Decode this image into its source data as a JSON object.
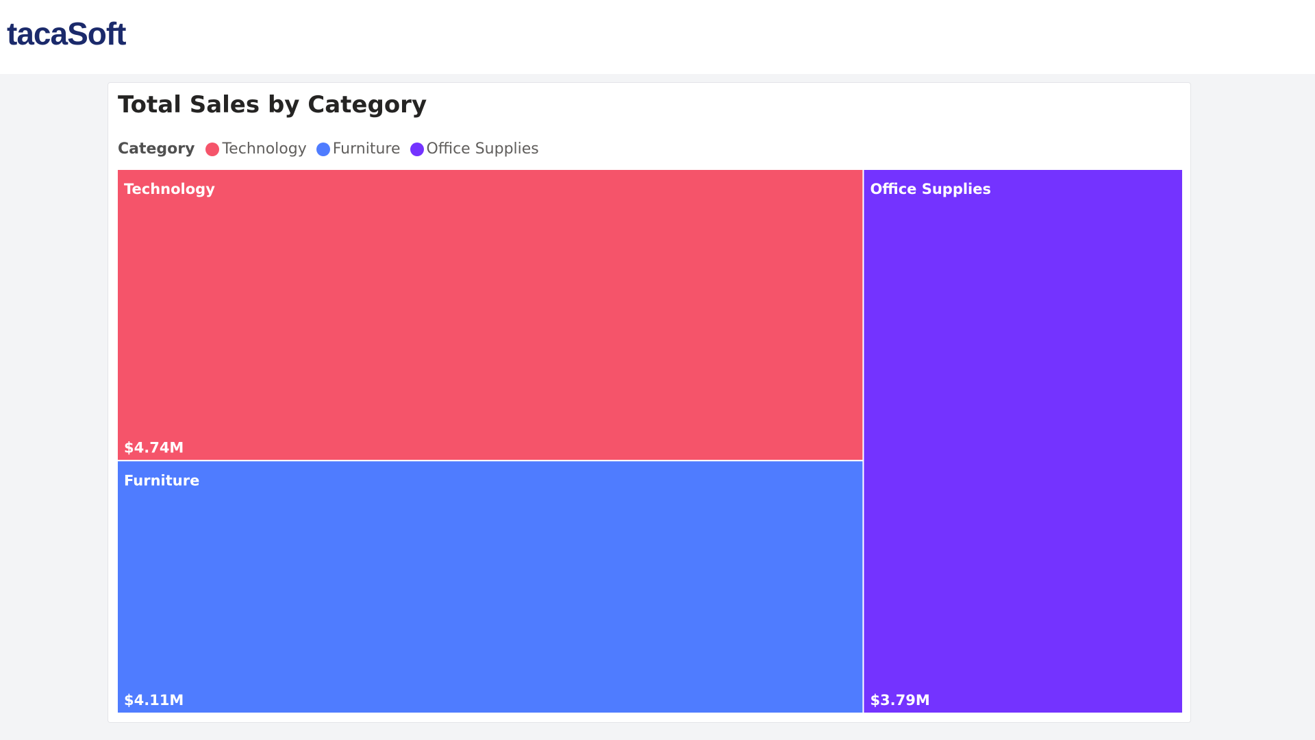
{
  "header": {
    "logo": "tacaSoft"
  },
  "chart_data": {
    "type": "treemap",
    "title": "Total Sales by Category",
    "legend_title": "Category",
    "categories": [
      "Technology",
      "Furniture",
      "Office Supplies"
    ],
    "values": [
      4740000,
      4110000,
      3790000
    ],
    "value_labels": [
      "$4.74M",
      "$4.11M",
      "$3.79M"
    ],
    "colors": [
      "#f5546a",
      "#4f7cff",
      "#7433ff"
    ]
  }
}
